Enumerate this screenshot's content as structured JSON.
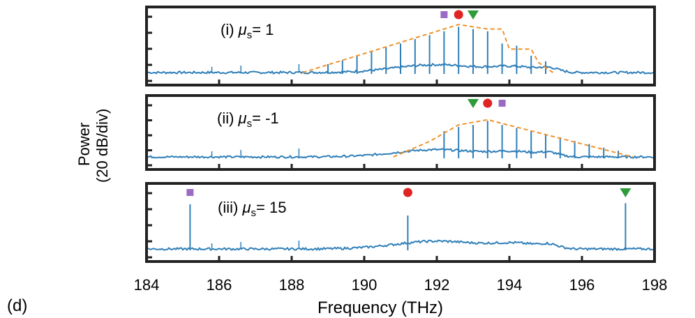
{
  "figure_label": "(d)",
  "ylabel_line1": "Power",
  "ylabel_line2": "(20 dB/div)",
  "xlabel": "Frequency (THz)",
  "colors": {
    "spectrum": "#2f7fb8",
    "envelope": "#f0922b",
    "square": "#9b6bc4",
    "circle": "#e02424",
    "triangle": "#2e9c3a",
    "frame": "#222222"
  },
  "chart_data": [
    {
      "type": "line",
      "panel": "(i)",
      "label_prefix": "(i) ",
      "mu_value": "1",
      "xlim": [
        184,
        198
      ],
      "xticks": [
        184,
        186,
        188,
        190,
        192,
        194,
        196,
        198
      ],
      "lines_x": [
        189.0,
        189.4,
        189.8,
        190.2,
        190.6,
        191.0,
        191.4,
        191.8,
        192.2,
        192.6,
        193.0,
        193.4,
        193.8,
        194.2,
        194.6,
        195.0
      ],
      "lines_y": [
        0.15,
        0.22,
        0.3,
        0.37,
        0.45,
        0.52,
        0.6,
        0.67,
        0.74,
        0.82,
        0.78,
        0.74,
        0.52,
        0.48,
        0.3,
        0.2
      ],
      "envelope_x": [
        188.3,
        192.6,
        193.4,
        193.8,
        194.0,
        194.6,
        194.8,
        195.2
      ],
      "envelope_y": [
        0.0,
        0.86,
        0.78,
        0.78,
        0.42,
        0.42,
        0.18,
        0.0
      ],
      "markers": [
        {
          "shape": "square",
          "x": 192.2
        },
        {
          "shape": "circle",
          "x": 192.6
        },
        {
          "shape": "triangle",
          "x": 193.0
        }
      ]
    },
    {
      "type": "line",
      "panel": "(ii)",
      "label_prefix": "(ii) ",
      "mu_value": "-1",
      "xlim": [
        184,
        198
      ],
      "xticks": [
        184,
        186,
        188,
        190,
        192,
        194,
        196,
        198
      ],
      "lines_x": [
        192.2,
        192.6,
        193.0,
        193.4,
        193.8,
        194.2,
        194.6,
        195.0,
        195.4,
        195.8,
        196.2,
        196.6,
        197.0
      ],
      "lines_y": [
        0.5,
        0.58,
        0.62,
        0.7,
        0.62,
        0.56,
        0.5,
        0.44,
        0.38,
        0.31,
        0.25,
        0.18,
        0.12
      ],
      "envelope_x": [
        190.8,
        191.8,
        192.6,
        193.4,
        197.4
      ],
      "envelope_y": [
        0.0,
        0.3,
        0.62,
        0.72,
        0.0
      ],
      "markers": [
        {
          "shape": "triangle",
          "x": 193.0
        },
        {
          "shape": "circle",
          "x": 193.4
        },
        {
          "shape": "square",
          "x": 193.8
        }
      ]
    },
    {
      "type": "line",
      "panel": "(iii)",
      "label_prefix": "(iii) ",
      "mu_value": "15",
      "xlim": [
        184,
        198
      ],
      "xticks": [
        184,
        186,
        188,
        190,
        192,
        194,
        196,
        198
      ],
      "lines_x": [
        185.2,
        191.2,
        197.2
      ],
      "lines_y": [
        0.8,
        0.6,
        0.82
      ],
      "envelope_x": [],
      "envelope_y": [],
      "markers": [
        {
          "shape": "square",
          "x": 185.2
        },
        {
          "shape": "circle",
          "x": 191.2
        },
        {
          "shape": "triangle",
          "x": 197.2
        }
      ]
    }
  ]
}
